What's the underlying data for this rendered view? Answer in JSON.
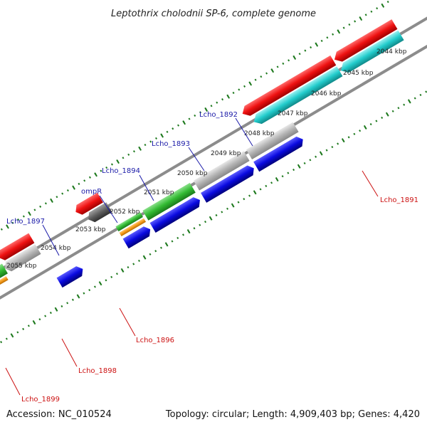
{
  "title": "Leptothrix cholodnii SP-6, complete genome",
  "footer": {
    "accession": "Accession: NC_010524",
    "summary": "Topology: circular; Length: 4,909,403 bp; Genes: 4,420"
  },
  "scale_labels": [
    "2044 kbp",
    "2045 kbp",
    "2046 kbp",
    "2047 kbp",
    "2048 kbp",
    "2049 kbp",
    "2050 kbp",
    "2051 kbp",
    "2052 kbp",
    "2053 kbp",
    "2054 kbp",
    "2055 kbp"
  ],
  "gene_labels_forward": [
    "Lcho_1892",
    "Lcho_1893",
    "Lcho_1894",
    "ompR",
    "Lcho_1897"
  ],
  "gene_labels_reverse": [
    "Lcho_1891",
    "Lcho_1896",
    "Lcho_1898",
    "Lcho_1899"
  ],
  "colors": {
    "forward_cds": "#0a0ae0",
    "reverse_cds": "#ee1111",
    "reverse_orf": "#22cccc",
    "cog_green": "#33bb33",
    "cog_orange": "#f59a1a",
    "cog_grey": "#b4b4b4",
    "cog_dark": "#606060",
    "backbone": "#808080",
    "ticks": "#1f7a1f",
    "label_forward": "#1a1aa8",
    "label_reverse": "#cc1111"
  }
}
